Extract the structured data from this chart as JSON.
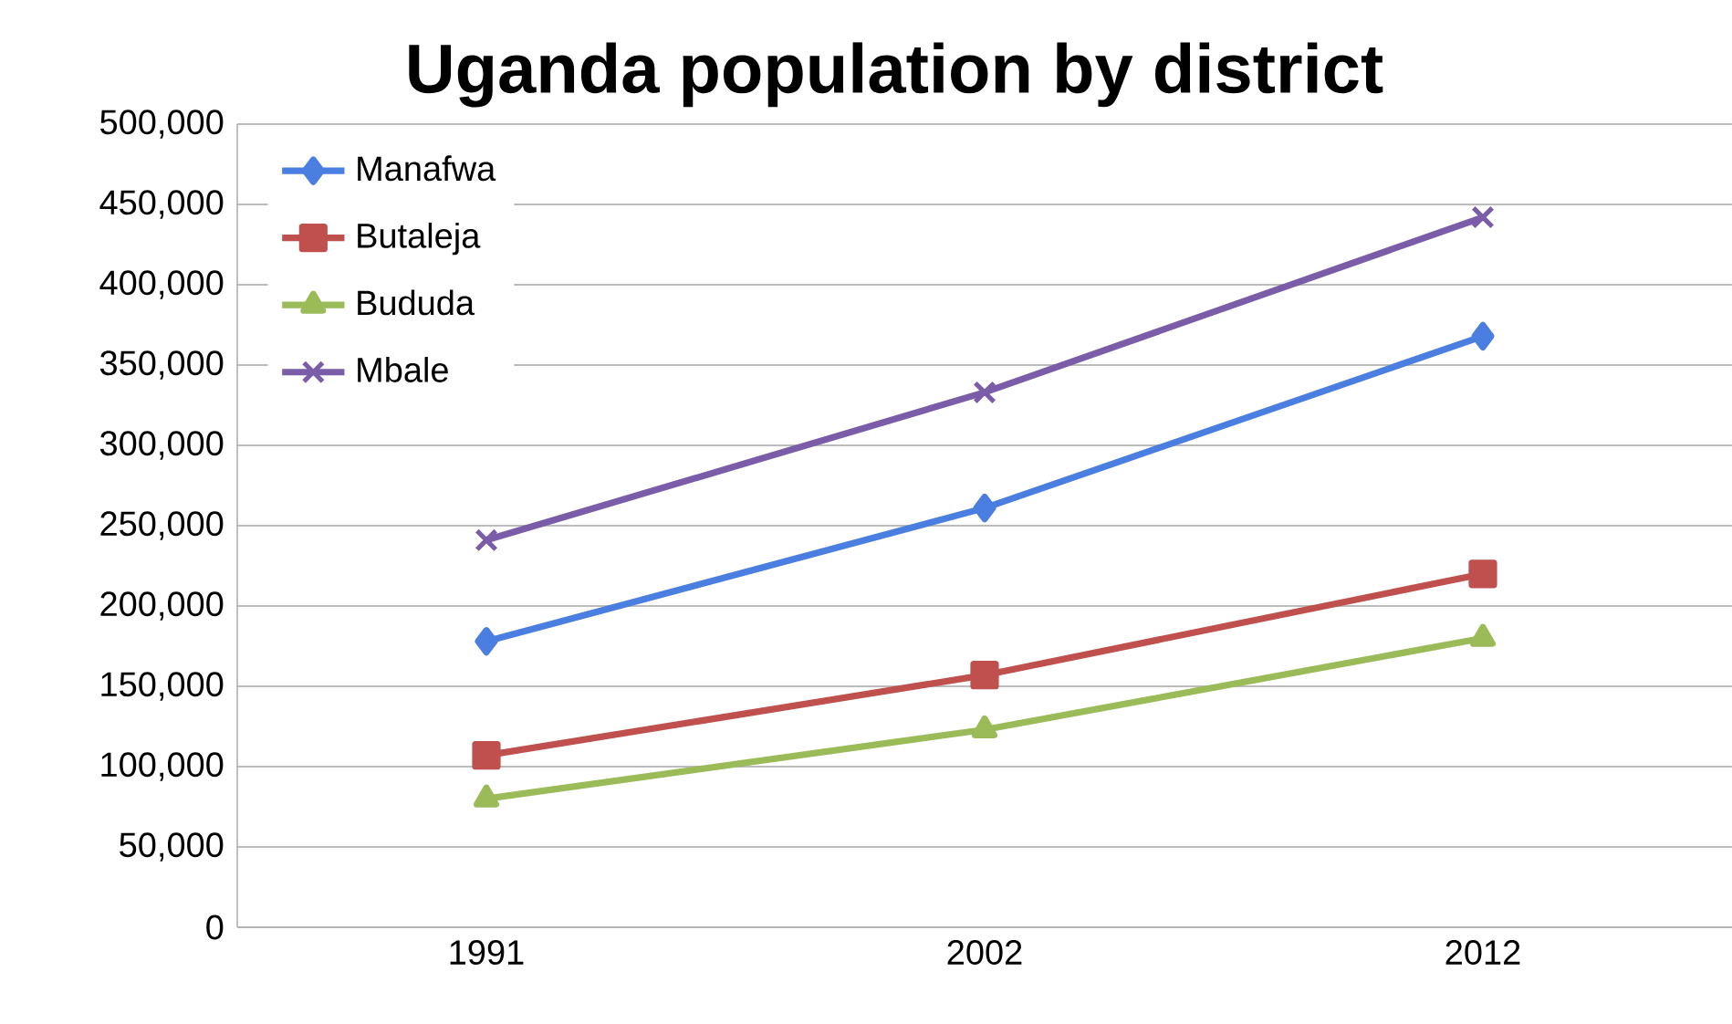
{
  "chart_data": {
    "type": "line",
    "title": "Uganda population by district",
    "categories": [
      "1991",
      "2002",
      "2012"
    ],
    "series": [
      {
        "name": "Manafwa",
        "color": "#4a7ee0",
        "marker": "diamond",
        "values": [
          178000,
          261000,
          368000
        ]
      },
      {
        "name": "Butaleja",
        "color": "#c0504d",
        "marker": "square",
        "values": [
          107000,
          157000,
          220000
        ]
      },
      {
        "name": "Bududa",
        "color": "#9bbb59",
        "marker": "triangle",
        "values": [
          80000,
          123000,
          180000
        ]
      },
      {
        "name": "Mbale",
        "color": "#7a5ca8",
        "marker": "cross",
        "values": [
          241000,
          333000,
          442000
        ]
      }
    ],
    "ylim": [
      0,
      500000
    ],
    "yticks": [
      {
        "value": 0,
        "label": "0"
      },
      {
        "value": 50000,
        "label": "50,000"
      },
      {
        "value": 100000,
        "label": "100,000"
      },
      {
        "value": 150000,
        "label": "150,000"
      },
      {
        "value": 200000,
        "label": "200,000"
      },
      {
        "value": 250000,
        "label": "250,000"
      },
      {
        "value": 300000,
        "label": "300,000"
      },
      {
        "value": 350000,
        "label": "350,000"
      },
      {
        "value": 400000,
        "label": "400,000"
      },
      {
        "value": 450000,
        "label": "450,000"
      },
      {
        "value": 500000,
        "label": "500,000"
      }
    ],
    "grid": "y",
    "legend": "top left",
    "line_style": "solid"
  }
}
